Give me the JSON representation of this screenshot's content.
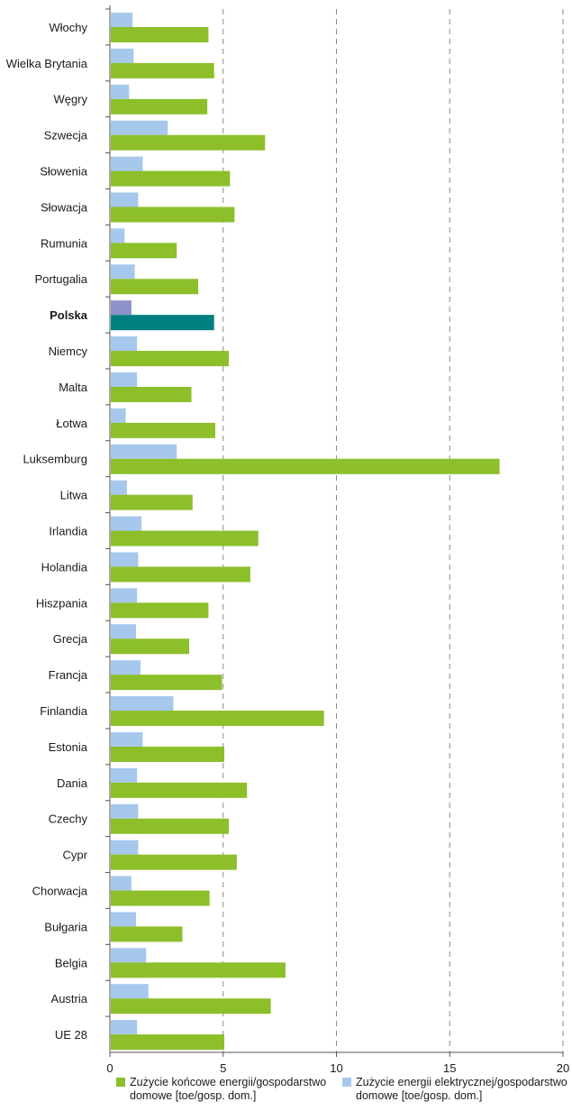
{
  "chart_data": {
    "type": "bar",
    "orientation": "horizontal",
    "categories": [
      "Włochy",
      "Wielka Brytania",
      "Węgry",
      "Szwecja",
      "Słowenia",
      "Słowacja",
      "Rumunia",
      "Portugalia",
      "Polska",
      "Niemcy",
      "Malta",
      "Łotwa",
      "Luksemburg",
      "Litwa",
      "Irlandia",
      "Holandia",
      "Hiszpania",
      "Grecja",
      "Francja",
      "Finlandia",
      "Estonia",
      "Dania",
      "Czechy",
      "Cypr",
      "Chorwacja",
      "Bułgaria",
      "Belgia",
      "Austria",
      "UE 28"
    ],
    "highlight_category": "Polska",
    "series": [
      {
        "name": "Zużycie energii elektrycznej/gospodarstwo domowe [toe/gosp. dom.]",
        "legend_lines": [
          "Zużycie energii elektrycznej/gospodarstwo",
          "domowe [toe/gosp. dom.]"
        ],
        "color": "#a6c8ed",
        "highlight_color": "#8e92c9",
        "values": [
          1.0,
          1.05,
          0.85,
          2.55,
          1.45,
          1.25,
          0.65,
          1.1,
          0.95,
          1.2,
          1.2,
          0.7,
          2.95,
          0.75,
          1.4,
          1.25,
          1.2,
          1.15,
          1.35,
          2.8,
          1.45,
          1.2,
          1.25,
          1.25,
          0.95,
          1.15,
          1.6,
          1.7,
          1.2
        ]
      },
      {
        "name": "Zużycie końcowe energii/gospodarstwo domowe [toe/gosp. dom.]",
        "legend_lines": [
          "Zużycie końcowe energii/gospodarstwo",
          "domowe [toe/gosp. dom.]"
        ],
        "color": "#8cbf2a",
        "highlight_color": "#008080",
        "values": [
          4.35,
          4.6,
          4.3,
          6.85,
          5.3,
          5.5,
          2.95,
          3.9,
          4.6,
          5.25,
          3.6,
          4.65,
          17.2,
          3.65,
          6.55,
          6.2,
          4.35,
          3.5,
          4.95,
          9.45,
          5.05,
          6.05,
          5.25,
          5.6,
          4.4,
          3.2,
          7.75,
          7.1,
          5.05
        ]
      }
    ],
    "xlim": [
      0,
      20
    ],
    "xticks": [
      "0",
      "5",
      "10",
      "15",
      "20"
    ],
    "grid": "vertical-dashed",
    "legend_position": "bottom"
  }
}
